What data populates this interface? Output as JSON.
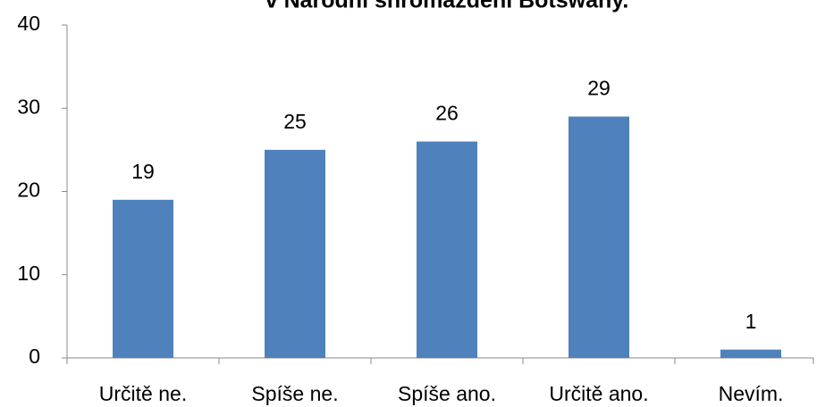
{
  "chart_data": {
    "type": "bar",
    "title": "v Národní shromáždění Botswany.",
    "categories": [
      "Určitě ne.",
      "Spíše ne.",
      "Spíše ano.",
      "Určitě ano.",
      "Nevím."
    ],
    "values": [
      19,
      25,
      26,
      29,
      1
    ],
    "color": "#4f81bd",
    "ylim": [
      0,
      40
    ],
    "yticks": [
      0,
      10,
      20,
      30,
      40
    ],
    "grid": false
  }
}
